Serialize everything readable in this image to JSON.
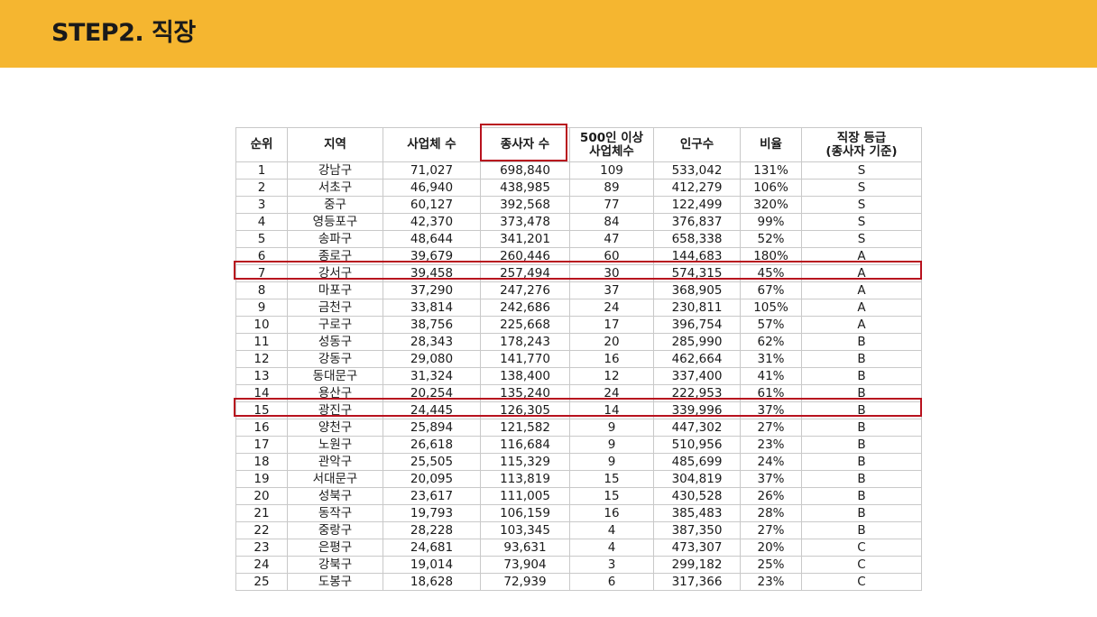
{
  "title": "STEP2. 직장",
  "table": {
    "headers": [
      "순위",
      "지역",
      "사업체 수",
      "종사자 수",
      "500인 이상\n사업체수",
      "인구수",
      "비율",
      "직장 등급\n(종사자 기준)"
    ],
    "rows": [
      [
        "1",
        "강남구",
        "71,027",
        "698,840",
        "109",
        "533,042",
        "131%",
        "S"
      ],
      [
        "2",
        "서초구",
        "46,940",
        "438,985",
        "89",
        "412,279",
        "106%",
        "S"
      ],
      [
        "3",
        "중구",
        "60,127",
        "392,568",
        "77",
        "122,499",
        "320%",
        "S"
      ],
      [
        "4",
        "영등포구",
        "42,370",
        "373,478",
        "84",
        "376,837",
        "99%",
        "S"
      ],
      [
        "5",
        "송파구",
        "48,644",
        "341,201",
        "47",
        "658,338",
        "52%",
        "S"
      ],
      [
        "6",
        "종로구",
        "39,679",
        "260,446",
        "60",
        "144,683",
        "180%",
        "A"
      ],
      [
        "7",
        "강서구",
        "39,458",
        "257,494",
        "30",
        "574,315",
        "45%",
        "A"
      ],
      [
        "8",
        "마포구",
        "37,290",
        "247,276",
        "37",
        "368,905",
        "67%",
        "A"
      ],
      [
        "9",
        "금천구",
        "33,814",
        "242,686",
        "24",
        "230,811",
        "105%",
        "A"
      ],
      [
        "10",
        "구로구",
        "38,756",
        "225,668",
        "17",
        "396,754",
        "57%",
        "A"
      ],
      [
        "11",
        "성동구",
        "28,343",
        "178,243",
        "20",
        "285,990",
        "62%",
        "B"
      ],
      [
        "12",
        "강동구",
        "29,080",
        "141,770",
        "16",
        "462,664",
        "31%",
        "B"
      ],
      [
        "13",
        "동대문구",
        "31,324",
        "138,400",
        "12",
        "337,400",
        "41%",
        "B"
      ],
      [
        "14",
        "용산구",
        "20,254",
        "135,240",
        "24",
        "222,953",
        "61%",
        "B"
      ],
      [
        "15",
        "광진구",
        "24,445",
        "126,305",
        "14",
        "339,996",
        "37%",
        "B"
      ],
      [
        "16",
        "양천구",
        "25,894",
        "121,582",
        "9",
        "447,302",
        "27%",
        "B"
      ],
      [
        "17",
        "노원구",
        "26,618",
        "116,684",
        "9",
        "510,956",
        "23%",
        "B"
      ],
      [
        "18",
        "관악구",
        "25,505",
        "115,329",
        "9",
        "485,699",
        "24%",
        "B"
      ],
      [
        "19",
        "서대문구",
        "20,095",
        "113,819",
        "15",
        "304,819",
        "37%",
        "B"
      ],
      [
        "20",
        "성북구",
        "23,617",
        "111,005",
        "15",
        "430,528",
        "26%",
        "B"
      ],
      [
        "21",
        "동작구",
        "19,793",
        "106,159",
        "16",
        "385,483",
        "28%",
        "B"
      ],
      [
        "22",
        "중랑구",
        "28,228",
        "103,345",
        "4",
        "387,350",
        "27%",
        "B"
      ],
      [
        "23",
        "은평구",
        "24,681",
        "93,631",
        "4",
        "473,307",
        "20%",
        "C"
      ],
      [
        "24",
        "강북구",
        "19,014",
        "73,904",
        "3",
        "299,182",
        "25%",
        "C"
      ],
      [
        "25",
        "도봉구",
        "18,628",
        "72,939",
        "6",
        "317,366",
        "23%",
        "C"
      ]
    ]
  },
  "colors": {
    "header_bar": "#F5B630",
    "highlight": "#B8121E",
    "grid": "#c9c9c9"
  }
}
